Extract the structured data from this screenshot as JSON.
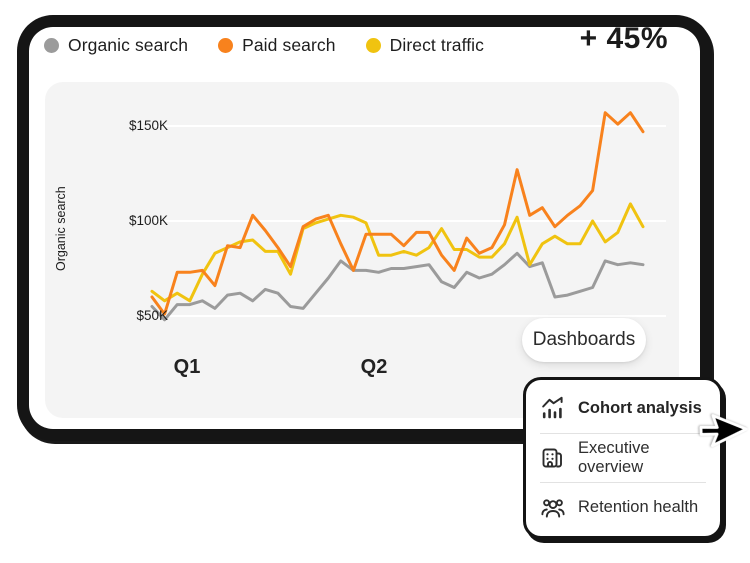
{
  "legend": {
    "items": [
      {
        "label": "Organic search",
        "color": "#9B9B9B"
      },
      {
        "label": "Paid search",
        "color": "#F8821D"
      },
      {
        "label": "Direct traffic",
        "color": "#F0C310"
      }
    ]
  },
  "kpi": {
    "value": "+ 45%"
  },
  "chart_data": {
    "type": "line",
    "title": "",
    "xlabel": "",
    "ylabel": "Organic search",
    "units": "$K",
    "yticks": [
      "$150K",
      "$100K",
      "$50K"
    ],
    "ytick_values": [
      150,
      100,
      50
    ],
    "xticks": [
      "Q1",
      "Q2"
    ],
    "ylim": [
      40,
      165
    ],
    "grid": true,
    "legend_position": "top",
    "series": [
      {
        "name": "Organic search",
        "color": "#9B9B9B",
        "values": [
          55,
          48,
          56,
          56,
          58,
          54,
          61,
          62,
          58,
          64,
          62,
          55,
          54,
          62,
          70,
          79,
          74,
          74,
          73,
          75,
          75,
          76,
          77,
          68,
          65,
          73,
          70,
          72,
          77,
          83,
          76,
          78,
          60,
          61,
          63,
          65,
          79,
          77,
          78,
          77
        ]
      },
      {
        "name": "Paid search",
        "color": "#F8821D",
        "values": [
          60,
          51,
          73,
          73,
          74,
          66,
          87,
          86,
          103,
          95,
          86,
          76,
          97,
          101,
          103,
          88,
          74,
          93,
          93,
          93,
          87,
          94,
          94,
          82,
          74,
          91,
          83,
          86,
          98,
          127,
          103,
          107,
          97,
          103,
          108,
          116,
          157,
          151,
          157,
          147
        ]
      },
      {
        "name": "Direct traffic",
        "color": "#F0C310",
        "values": [
          63,
          58,
          62,
          58,
          72,
          83,
          86,
          89,
          90,
          84,
          84,
          72,
          96,
          99,
          101,
          103,
          102,
          99,
          82,
          82,
          84,
          82,
          86,
          96,
          85,
          85,
          81,
          81,
          88,
          102,
          77,
          88,
          92,
          88,
          88,
          100,
          89,
          94,
          109,
          97
        ]
      }
    ]
  },
  "dashboards_button": {
    "label": "Dashboards"
  },
  "menu": {
    "items": [
      {
        "label": "Cohort analysis",
        "icon": "cohort-analysis-icon"
      },
      {
        "label": "Executive overview",
        "icon": "executive-overview-icon"
      },
      {
        "label": "Retention health",
        "icon": "retention-health-icon"
      }
    ]
  }
}
